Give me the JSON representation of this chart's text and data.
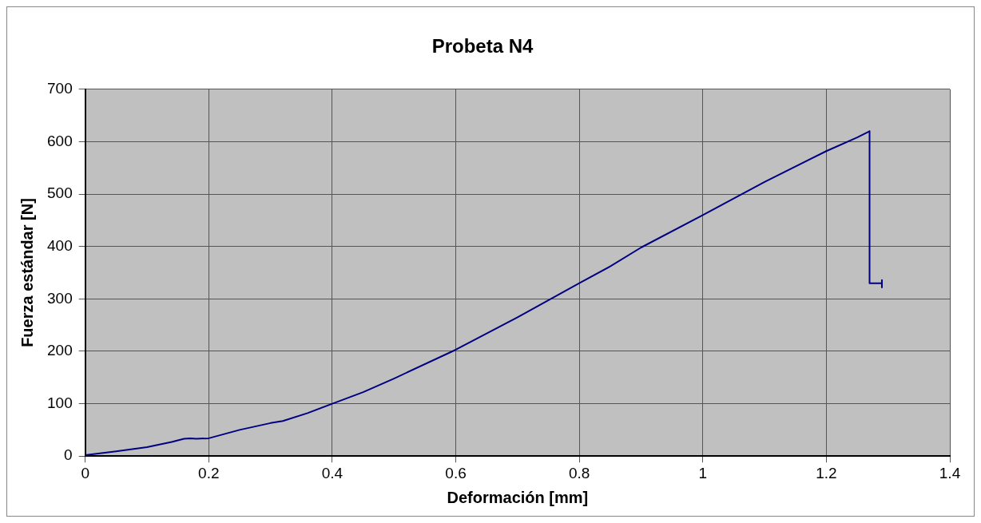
{
  "chart_data": {
    "type": "line",
    "title": "Probeta N4",
    "xlabel": "Deformación [mm]",
    "ylabel": "Fuerza estándar [N]",
    "x": [
      0,
      0.05,
      0.1,
      0.14,
      0.16,
      0.17,
      0.18,
      0.2,
      0.25,
      0.3,
      0.32,
      0.36,
      0.4,
      0.45,
      0.5,
      0.6,
      0.7,
      0.8,
      0.85,
      0.9,
      1.0,
      1.1,
      1.2,
      1.25,
      1.27,
      1.27,
      1.29,
      1.29,
      1.29
    ],
    "series": [
      {
        "color": "#000080",
        "values": [
          2,
          9,
          17,
          27,
          33,
          34,
          33,
          34,
          50,
          63,
          67,
          82,
          100,
          122,
          148,
          203,
          265,
          330,
          362,
          398,
          460,
          523,
          582,
          608,
          620,
          330,
          330,
          336,
          322
        ]
      }
    ],
    "xlim": [
      0,
      1.4
    ],
    "xticks": [
      0,
      0.2,
      0.4,
      0.6,
      0.8,
      1,
      1.2,
      1.4
    ],
    "ylim": [
      0,
      700
    ],
    "yticks": [
      0,
      100,
      200,
      300,
      400,
      500,
      600,
      700
    ],
    "grid": true,
    "legend": false,
    "marker": "none",
    "line_style": "solid"
  }
}
